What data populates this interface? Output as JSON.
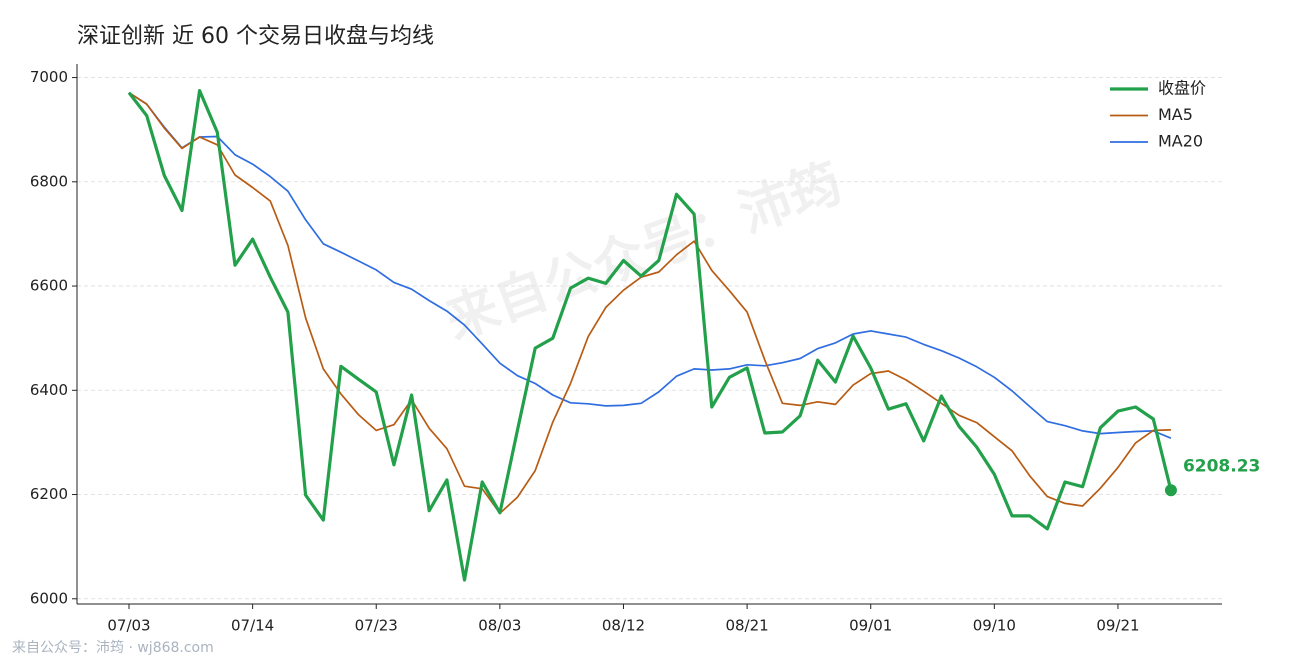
{
  "chart_data": {
    "type": "line",
    "title": "深证创新 近 60 个交易日收盘与均线",
    "watermark": "来自公众号：沛筠",
    "footer": "来自公众号：沛筠 · wj868.com",
    "categories": [
      "07/03",
      null,
      null,
      null,
      null,
      null,
      null,
      "07/14",
      null,
      null,
      null,
      null,
      null,
      null,
      "07/23",
      null,
      null,
      null,
      null,
      null,
      null,
      "08/03",
      null,
      null,
      null,
      null,
      null,
      null,
      "08/12",
      null,
      null,
      null,
      null,
      null,
      null,
      "08/21",
      null,
      null,
      null,
      null,
      null,
      null,
      "09/01",
      null,
      null,
      null,
      null,
      null,
      null,
      "09/10",
      null,
      null,
      null,
      null,
      null,
      null,
      "09/21",
      null,
      null,
      null
    ],
    "series": [
      {
        "name": "收盘价",
        "color": "#22a04a",
        "linewidth": 3.2,
        "values": [
          6971,
          6927,
          6812,
          6745,
          6975,
          6895,
          6640,
          6690,
          6617,
          6550,
          6199,
          6151,
          6446,
          6421,
          6397,
          6257,
          6391,
          6169,
          6228,
          6036,
          6224,
          6165,
          6324,
          6481,
          6500,
          6596,
          6615,
          6605,
          6649,
          6619,
          6649,
          6776,
          6738,
          6368,
          6425,
          6443,
          6318,
          6320,
          6351,
          6458,
          6416,
          6504,
          6443,
          6364,
          6374,
          6303,
          6389,
          6331,
          6291,
          6239,
          6159,
          6159,
          6134,
          6224,
          6215,
          6328,
          6360,
          6368,
          6345,
          6208.23
        ]
      },
      {
        "name": "MA5",
        "color": "#b85c14",
        "linewidth": 1.7,
        "values": [
          6971,
          6949,
          6903,
          6864,
          6886,
          6871,
          6813,
          6789,
          6763,
          6678,
          6539,
          6441,
          6393,
          6353,
          6323,
          6334,
          6382,
          6327,
          6288,
          6216,
          6211,
          6164,
          6195,
          6246,
          6339,
          6413,
          6503,
          6559,
          6592,
          6617,
          6627,
          6660,
          6686,
          6630,
          6591,
          6550,
          6458,
          6375,
          6371,
          6378,
          6373,
          6410,
          6432,
          6437,
          6420,
          6398,
          6375,
          6352,
          6338,
          6311,
          6284,
          6236,
          6196,
          6183,
          6178,
          6212,
          6252,
          6299,
          6323,
          6324
        ]
      },
      {
        "name": "MA20",
        "color": "#2f6de0",
        "linewidth": 1.7,
        "values": [
          6971,
          6949,
          6905,
          6865,
          6886,
          6887,
          6852,
          6834,
          6810,
          6782,
          6727,
          6681,
          6665,
          6648,
          6631,
          6607,
          6594,
          6572,
          6552,
          6525,
          6489,
          6452,
          6428,
          6413,
          6391,
          6376,
          6374,
          6370,
          6371,
          6375,
          6397,
          6427,
          6441,
          6439,
          6441,
          6449,
          6447,
          6453,
          6461,
          6480,
          6491,
          6508,
          6514,
          6508,
          6502,
          6488,
          6476,
          6462,
          6445,
          6425,
          6399,
          6369,
          6340,
          6332,
          6322,
          6317,
          6319,
          6321,
          6322,
          6308
        ]
      }
    ],
    "label_last": true,
    "ylim": [
      5990,
      7026
    ],
    "yticks": [
      6000,
      6200,
      6400,
      6600,
      6800,
      7000
    ],
    "grid": true,
    "legend": "upper right"
  }
}
